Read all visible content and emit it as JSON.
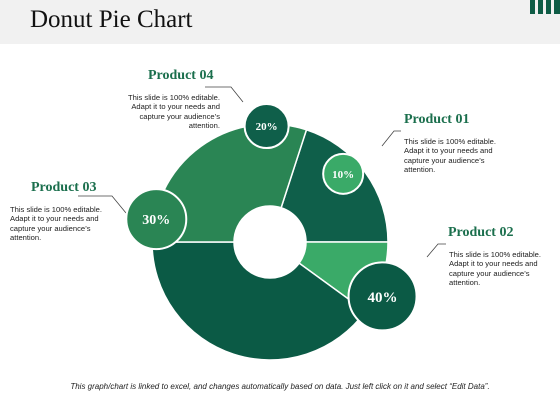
{
  "slide": {
    "title": "Donut Pie Chart",
    "footer": "This graph/chart is linked to excel, and changes automatically based on data.  Just left click on it and select “Edit Data”."
  },
  "chart_data": {
    "type": "pie",
    "style": "donut",
    "slices": [
      {
        "name": "Product 01",
        "value": 10,
        "label": "10%",
        "color": "#3aaa68"
      },
      {
        "name": "Product 02",
        "value": 40,
        "label": "40%",
        "color": "#0b5a45"
      },
      {
        "name": "Product 03",
        "value": 30,
        "label": "30%",
        "color": "#2a8554"
      },
      {
        "name": "Product 04",
        "value": 20,
        "label": "20%",
        "color": "#0f5f4a"
      }
    ],
    "descriptions": [
      "This slide is 100% editable. Adapt it to your needs and capture your audience’s attention.",
      "This slide is 100% editable. Adapt it to your needs and capture your audience’s attention.",
      "This slide is 100% editable. Adapt it to your needs and capture your audience’s attention.",
      "This slide is 100% editable. Adapt it to your needs and capture your audience’s attention."
    ]
  },
  "colors": {
    "accent": "#1b6f4d",
    "header_band": "#f1f1f1"
  }
}
